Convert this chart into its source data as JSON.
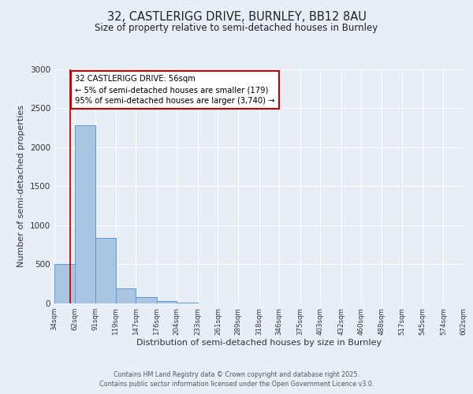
{
  "title_line1": "32, CASTLERIGG DRIVE, BURNLEY, BB12 8AU",
  "title_line2": "Size of property relative to semi-detached houses in Burnley",
  "xlabel": "Distribution of semi-detached houses by size in Burnley",
  "ylabel": "Number of semi-detached properties",
  "bin_edges": [
    34,
    62,
    91,
    119,
    147,
    176,
    204,
    233,
    261,
    289,
    318,
    346,
    375,
    403,
    432,
    460,
    488,
    517,
    545,
    574,
    602
  ],
  "bin_heights": [
    500,
    2280,
    840,
    195,
    80,
    35,
    10,
    2,
    0,
    0,
    0,
    0,
    0,
    0,
    0,
    0,
    0,
    0,
    0,
    0
  ],
  "bar_color": "#a8c4e0",
  "bar_edgecolor": "#5b9bd5",
  "red_line_x": 56,
  "annotation_title": "32 CASTLERIGG DRIVE: 56sqm",
  "annotation_line1": "← 5% of semi-detached houses are smaller (179)",
  "annotation_line2": "95% of semi-detached houses are larger (3,740) →",
  "annotation_box_color": "#ffffff",
  "annotation_box_edgecolor": "#cc0000",
  "red_line_color": "#cc0000",
  "ylim": [
    0,
    3000
  ],
  "yticks": [
    0,
    500,
    1000,
    1500,
    2000,
    2500,
    3000
  ],
  "background_color": "#e8eef5",
  "plot_background": "#e8eef5",
  "grid_color": "#ffffff",
  "footer_line1": "Contains HM Land Registry data © Crown copyright and database right 2025.",
  "footer_line2": "Contains public sector information licensed under the Open Government Licence v3.0."
}
